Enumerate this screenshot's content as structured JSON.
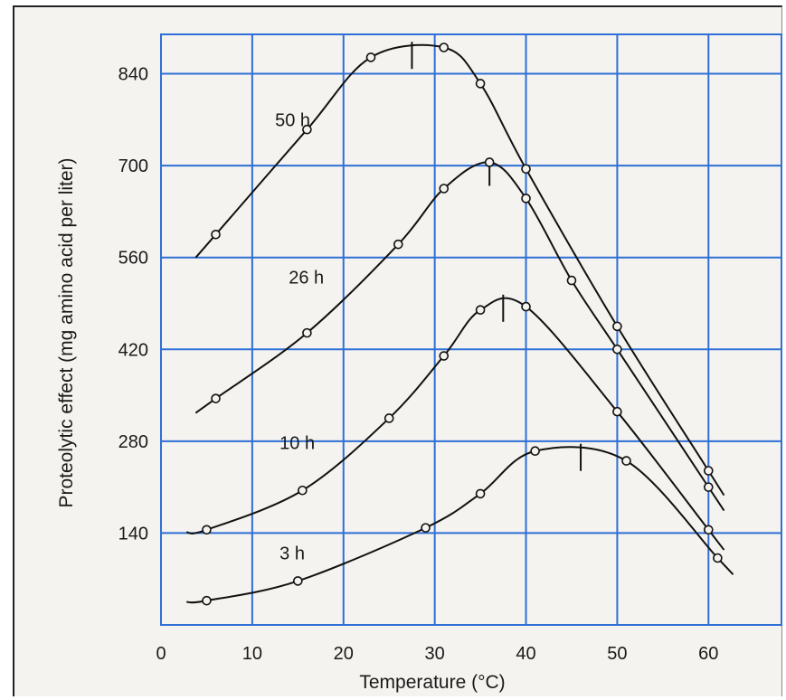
{
  "chart_data": {
    "type": "line",
    "title": "",
    "xlabel": "Temperature (°C)",
    "ylabel": "Proteolytic effect (mg amino acid per liter)",
    "xlim": [
      0,
      68
    ],
    "ylim": [
      0,
      900
    ],
    "xticks": [
      "0",
      "10",
      "20",
      "30",
      "40",
      "50",
      "60"
    ],
    "yticks": [
      "140",
      "280",
      "420",
      "560",
      "700",
      "840"
    ],
    "grid": true,
    "colors": {
      "grid": "#2f6fd6",
      "line": "#111111",
      "background": "#f4f3ef"
    },
    "series": [
      {
        "name": "50 h",
        "points": [
          [
            6,
            595
          ],
          [
            16,
            755
          ],
          [
            23,
            865
          ],
          [
            31,
            880
          ],
          [
            35,
            825
          ],
          [
            40,
            695
          ],
          [
            50,
            455
          ],
          [
            60,
            235
          ]
        ],
        "peak": 27.5
      },
      {
        "name": "26 h",
        "points": [
          [
            6,
            345
          ],
          [
            16,
            445
          ],
          [
            26,
            580
          ],
          [
            31,
            665
          ],
          [
            36,
            705
          ],
          [
            40,
            650
          ],
          [
            45,
            525
          ],
          [
            50,
            420
          ],
          [
            60,
            210
          ]
        ],
        "peak": 36
      },
      {
        "name": "10 h",
        "points": [
          [
            5,
            145
          ],
          [
            15.5,
            205
          ],
          [
            25,
            315
          ],
          [
            31,
            410
          ],
          [
            35,
            480
          ],
          [
            40,
            485
          ],
          [
            50,
            325
          ],
          [
            60,
            145
          ]
        ],
        "peak": 37.5
      },
      {
        "name": "3 h",
        "points": [
          [
            5,
            37
          ],
          [
            15,
            67
          ],
          [
            29,
            148
          ],
          [
            35,
            200
          ],
          [
            41,
            265
          ],
          [
            51,
            250
          ],
          [
            61,
            102
          ]
        ],
        "peak": 46
      }
    ]
  }
}
